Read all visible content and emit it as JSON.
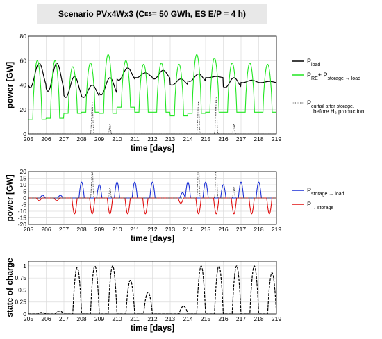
{
  "banner": {
    "prefix": "Scenario PVx4Wx3  (C",
    "sub": "ES",
    "suffix": "= 50 GWh, ES E/P = 4 h)"
  },
  "colors": {
    "black": "#000000",
    "green": "#22e622",
    "blue": "#1a2fd6",
    "red": "#e01010",
    "grid": "#dcdcdc",
    "dotted": "#404040"
  },
  "chart_data": [
    {
      "type": "line",
      "xlabel": "time [days]",
      "ylabel": "power [GW]",
      "xlim": [
        205,
        219
      ],
      "ylim": [
        0,
        80
      ],
      "xticks": [
        205,
        206,
        207,
        208,
        209,
        210,
        211,
        212,
        213,
        214,
        215,
        216,
        217,
        218,
        219
      ],
      "yticks": [
        0,
        20,
        40,
        60,
        80
      ],
      "grid": true,
      "legend_position": "right",
      "series": [
        {
          "name": "P_load",
          "legend_main": "P",
          "legend_sub": "load",
          "legend_mid": "",
          "legend_sub2": "",
          "legend_line2": "",
          "style": "solid",
          "color": "#000000",
          "daily_profile": {
            "type": "load",
            "base": [
              38,
              35,
              30,
              30,
              32,
              44,
              46,
              45,
              40,
              43,
              46,
              38,
              42,
              42
            ],
            "peak": [
              58,
              58,
              47,
              40,
              46,
              54,
              50,
              52,
              45,
              49,
              47,
              46,
              44,
              43
            ]
          }
        },
        {
          "name": "P_RE + P_storage→load",
          "legend_main": "P",
          "legend_sub": "RE",
          "legend_mid": "+ P",
          "legend_sub2": "storage → load",
          "legend_line2": "",
          "style": "solid",
          "color": "#22e622",
          "daily_profile": {
            "type": "pv",
            "base": [
              12,
              13,
              17,
              18,
              17,
              22,
              18,
              18,
              15,
              17,
              18,
              18,
              18,
              18
            ],
            "peak": [
              60,
              60,
              55,
              58,
              65,
              60,
              57,
              58,
              57,
              65,
              62,
              58,
              58,
              57
            ]
          }
        },
        {
          "name": "P_curtail after storage, before H2 production",
          "legend_main": "P",
          "legend_sub": "curtail after storage,",
          "legend_mid": "",
          "legend_sub2": "",
          "legend_line2": "before H₂ production",
          "style": "dotted",
          "color": "#404040",
          "spikes": [
            [
              208.6,
              26
            ],
            [
              209.6,
              8
            ],
            [
              214.6,
              27
            ],
            [
              215.6,
              30
            ],
            [
              216.6,
              8
            ]
          ]
        }
      ]
    },
    {
      "type": "line",
      "xlabel": "time [days]",
      "ylabel": "power [GW]",
      "xlim": [
        205,
        219
      ],
      "ylim": [
        -20,
        20
      ],
      "xticks": [
        205,
        206,
        207,
        208,
        209,
        210,
        211,
        212,
        213,
        214,
        215,
        216,
        217,
        218,
        219
      ],
      "yticks": [
        20,
        15,
        10,
        5,
        0,
        -5,
        -10,
        -15,
        -20
      ],
      "grid": true,
      "legend_position": "right",
      "series": [
        {
          "name": "P_storage→load",
          "legend_main": "P",
          "legend_sub": "storage → load",
          "color": "#1a2fd6",
          "pulses": [
            [
              205.8,
              2
            ],
            [
              206.8,
              2
            ],
            [
              208.0,
              12
            ],
            [
              209.0,
              10
            ],
            [
              210.0,
              12
            ],
            [
              211.0,
              12
            ],
            [
              212.0,
              12
            ],
            [
              213.7,
              4
            ],
            [
              214.0,
              12
            ],
            [
              215.0,
              12
            ],
            [
              216.0,
              10
            ],
            [
              217.0,
              12
            ],
            [
              218.0,
              12
            ]
          ]
        },
        {
          "name": "P_→storage",
          "legend_main": "P",
          "legend_sub": "→ storage",
          "color": "#e01010",
          "pulses": [
            [
              205.6,
              -2
            ],
            [
              206.6,
              -2
            ],
            [
              207.6,
              -12
            ],
            [
              208.6,
              -12
            ],
            [
              209.6,
              -12
            ],
            [
              210.6,
              -12
            ],
            [
              211.6,
              -12
            ],
            [
              213.6,
              -4
            ],
            [
              214.6,
              -12
            ],
            [
              215.6,
              -12
            ],
            [
              216.6,
              -12
            ],
            [
              217.6,
              -12
            ],
            [
              218.6,
              -12
            ]
          ]
        },
        {
          "name": "P_curtail",
          "legend_main": "",
          "legend_sub": "",
          "color": "#404040",
          "style": "dotted",
          "spikes": [
            [
              208.6,
              26
            ],
            [
              209.6,
              8
            ],
            [
              214.6,
              27
            ],
            [
              215.6,
              30
            ],
            [
              216.6,
              8
            ]
          ]
        }
      ]
    },
    {
      "type": "line",
      "xlabel": "time [days]",
      "ylabel": "state of charge",
      "xlim": [
        205,
        219
      ],
      "ylim": [
        0,
        1.1
      ],
      "xticks": [
        205,
        206,
        207,
        208,
        209,
        210,
        211,
        212,
        213,
        214,
        215,
        216,
        217,
        218,
        219
      ],
      "yticks": [
        0,
        0.25,
        0.5,
        0.75,
        1
      ],
      "yticklabels": [
        "0",
        "0.25",
        "0.5",
        "0.75",
        "1"
      ],
      "grid": true,
      "series": [
        {
          "name": "state of charge",
          "style": "dashed",
          "color": "#000000",
          "peaks": [
            [
              205.75,
              0.03
            ],
            [
              206.75,
              0.06
            ],
            [
              207.75,
              0.97
            ],
            [
              208.75,
              1.0
            ],
            [
              209.75,
              1.0
            ],
            [
              210.75,
              0.7
            ],
            [
              211.75,
              0.45
            ],
            [
              213.75,
              0.16
            ],
            [
              214.75,
              1.0
            ],
            [
              215.75,
              1.0
            ],
            [
              216.75,
              1.0
            ],
            [
              217.75,
              1.0
            ],
            [
              218.75,
              0.86
            ]
          ]
        }
      ]
    }
  ]
}
